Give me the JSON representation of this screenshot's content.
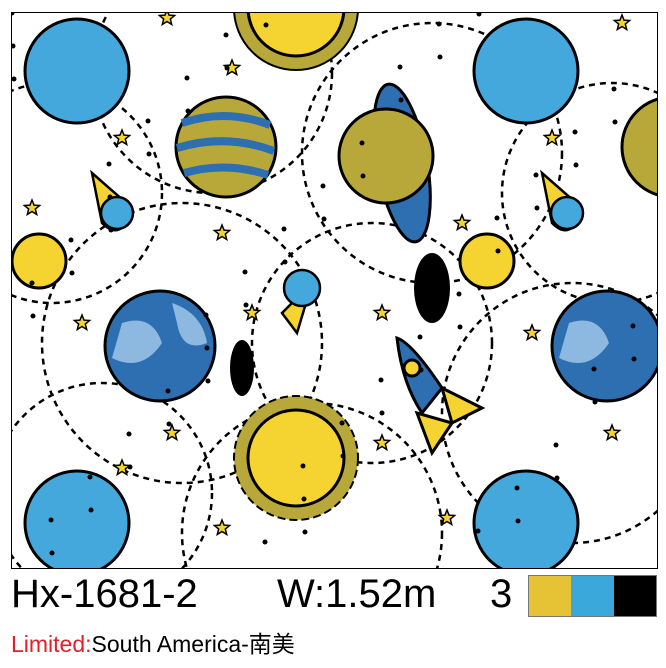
{
  "product": {
    "code": "Hx-1681-2",
    "width": "W:1.52m",
    "color_count": "3",
    "colors": [
      "#e5c334",
      "#3aa8da",
      "#000000"
    ],
    "limited_label": "Limited:",
    "limited_region": "South America-南美"
  },
  "pattern": {
    "background": "#ffffff",
    "palette": {
      "yellow": "#f5d330",
      "olive": "#b8a83a",
      "blue": "#45a8dc",
      "darkblue": "#2d6fb0",
      "lightblue": "#8db8e0",
      "black": "#000000"
    }
  }
}
